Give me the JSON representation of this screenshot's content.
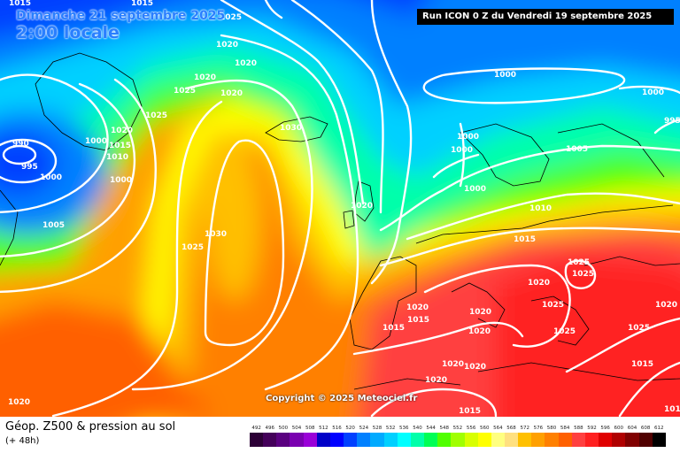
{
  "header": {
    "date_line": "Dimanche 21 septembre 2025",
    "time_line": "2:00 locale",
    "run_info": "Run ICON 0 Z du Vendredi 19 septembre 2025"
  },
  "copyright": "Copyright © 2025 Meteociel.fr",
  "footer": {
    "title": "Géop. Z500 & pression au sol",
    "subtitle": "(+ 48h)"
  },
  "legend": {
    "values": [
      "492",
      "496",
      "500",
      "504",
      "508",
      "512",
      "516",
      "520",
      "524",
      "528",
      "532",
      "536",
      "540",
      "544",
      "548",
      "552",
      "556",
      "560",
      "564",
      "568",
      "572",
      "576",
      "580",
      "584",
      "588",
      "592",
      "596",
      "600",
      "604",
      "608",
      "612"
    ],
    "colors": [
      "#2c0036",
      "#44005a",
      "#5a0080",
      "#7a00b0",
      "#9a00d8",
      "#0000c8",
      "#0000ff",
      "#0040ff",
      "#0080ff",
      "#00aaff",
      "#00d0ff",
      "#00ffff",
      "#00ffaa",
      "#00ff55",
      "#50ff00",
      "#a0ff00",
      "#d8ff00",
      "#ffff00",
      "#ffff80",
      "#ffe080",
      "#ffc000",
      "#ffa000",
      "#ff8000",
      "#ff6000",
      "#ff4040",
      "#ff2020",
      "#e00000",
      "#b00000",
      "#800000",
      "#500000",
      "#000000"
    ]
  },
  "pressure_labels": [
    "1015",
    "1015",
    "1025",
    "1020",
    "1020",
    "1020",
    "1025",
    "1020",
    "1025",
    "1000",
    "1020",
    "1015",
    "1010",
    "990",
    "995",
    "1030",
    "1000",
    "1000",
    "1005",
    "1030",
    "1025",
    "1020",
    "1000",
    "1005",
    "1015",
    "1010",
    "1020",
    "1015",
    "1020",
    "1020",
    "1015",
    "1020",
    "1020",
    "1025",
    "1025",
    "1025",
    "1025",
    "1025",
    "1020",
    "1020",
    "1020",
    "1000",
    "1000",
    "1000",
    "1000",
    "995",
    "1020",
    "1015",
    "1015",
    "1015"
  ]
}
